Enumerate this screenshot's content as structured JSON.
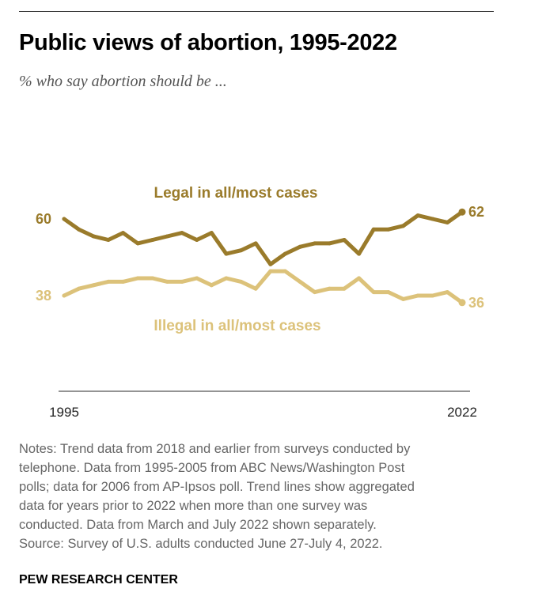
{
  "header": {
    "title": "Public views of abortion, 1995-2022",
    "subtitle": "% who say abortion should be ..."
  },
  "chart_data": {
    "type": "line",
    "xlim": [
      1995,
      2022
    ],
    "ylim": [
      25,
      75
    ],
    "x_ticks": [
      {
        "value": 1995,
        "label": "1995"
      },
      {
        "value": 2022,
        "label": "2022"
      }
    ],
    "grid": false,
    "series": [
      {
        "name": "Legal in all/most cases",
        "color": "#9a7b2b",
        "start_label": "60",
        "end_label": "62",
        "points": [
          [
            1995,
            60
          ],
          [
            1996,
            57
          ],
          [
            1997,
            55
          ],
          [
            1998,
            54
          ],
          [
            1999,
            56
          ],
          [
            2000,
            53
          ],
          [
            2001,
            54
          ],
          [
            2002,
            55
          ],
          [
            2003,
            56
          ],
          [
            2004,
            54
          ],
          [
            2005,
            56
          ],
          [
            2006,
            50
          ],
          [
            2007,
            51
          ],
          [
            2008,
            53
          ],
          [
            2009,
            47
          ],
          [
            2010,
            50
          ],
          [
            2011,
            52
          ],
          [
            2012,
            53
          ],
          [
            2013,
            53
          ],
          [
            2014,
            54
          ],
          [
            2015,
            50
          ],
          [
            2016,
            57
          ],
          [
            2017,
            57
          ],
          [
            2018,
            58
          ],
          [
            2019,
            61
          ],
          [
            2020,
            60
          ],
          [
            2021,
            59
          ],
          [
            2022,
            62
          ]
        ]
      },
      {
        "name": "Illegal in all/most cases",
        "color": "#dcc27a",
        "start_label": "38",
        "end_label": "36",
        "points": [
          [
            1995,
            38
          ],
          [
            1996,
            40
          ],
          [
            1997,
            41
          ],
          [
            1998,
            42
          ],
          [
            1999,
            42
          ],
          [
            2000,
            43
          ],
          [
            2001,
            43
          ],
          [
            2002,
            42
          ],
          [
            2003,
            42
          ],
          [
            2004,
            43
          ],
          [
            2005,
            41
          ],
          [
            2006,
            43
          ],
          [
            2007,
            42
          ],
          [
            2008,
            40
          ],
          [
            2009,
            45
          ],
          [
            2010,
            45
          ],
          [
            2011,
            42
          ],
          [
            2012,
            39
          ],
          [
            2013,
            40
          ],
          [
            2014,
            40
          ],
          [
            2015,
            43
          ],
          [
            2016,
            39
          ],
          [
            2017,
            39
          ],
          [
            2018,
            37
          ],
          [
            2019,
            38
          ],
          [
            2020,
            38
          ],
          [
            2021,
            39
          ],
          [
            2022,
            36
          ]
        ]
      }
    ]
  },
  "notes": [
    "Notes: Trend data from 2018 and earlier from surveys conducted by",
    "telephone. Data from 1995-2005 from ABC News/Washington Post",
    "polls; data for 2006 from AP-Ipsos poll. Trend lines show aggregated",
    "data for years prior to 2022 when more than one survey was",
    "conducted. Data from March and July 2022 shown separately.",
    "Source: Survey of U.S. adults conducted June 27-July 4, 2022."
  ],
  "footer": {
    "organization": "PEW RESEARCH CENTER"
  }
}
